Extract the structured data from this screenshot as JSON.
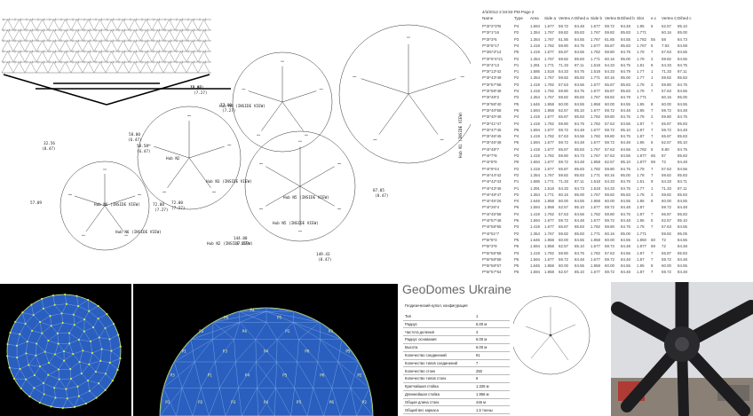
{
  "drawing": {
    "hubs": [
      {
        "id": "n2",
        "label": "Hub N2"
      },
      {
        "id": "n3",
        "label": "Hub N3 (INSIDE VIEW)"
      },
      {
        "id": "n4",
        "label": "Hub N4 (INSIDE VIEW)"
      },
      {
        "id": "n5",
        "label": "Hub N5 (INSIDE VIEW)"
      },
      {
        "id": "n6",
        "label": "Hub N6 (INSIDE VIEW)"
      },
      {
        "id": "n1",
        "label": "Hub N1 (INSIDE VIEW)"
      }
    ],
    "bottom_labels": [
      "Hub N6 (INSIDE VIEW)",
      "Hub N5 (INSIDE VIEW)",
      "Hub N2 (INSIDE VIEW)"
    ],
    "angle_labels": [
      "72.00",
      "(7.27)",
      "58.00",
      "(6.47)",
      "58.50",
      "(6.47)",
      "32.56",
      "(8.47)",
      "77.09",
      "(7.27)",
      "72.00",
      "(7.27)",
      "144.00",
      "(7.27)",
      "149.43",
      "(8.47)",
      "87.05",
      "(8.47)",
      "72.00",
      "(7.27)",
      "57.09",
      "(8.47)"
    ]
  },
  "table": {
    "meta": "4/3/2012  2:34:53 PM    Page 2",
    "columns": [
      "Name",
      "Type",
      "Area",
      "Side a",
      "Vertex A",
      "Dihed a",
      "Side b",
      "Vertex B",
      "Dihed b",
      "Slot",
      "e.c",
      "Vertex C",
      "Dihed c"
    ],
    "rows": [
      [
        "P*3I*2*3*B",
        "P4",
        "1.594",
        "1.677",
        "59.72",
        "84.48",
        "1.677",
        "59.72",
        "84.48",
        "1.95",
        "5",
        "62.57",
        "85.10"
      ],
      [
        "P*3I*1*16",
        "P2",
        "1.354",
        "1.767",
        "59.82",
        "85.83",
        "1.767",
        "59.82",
        "85.83",
        "1.771",
        "",
        "60.16",
        "85.00"
      ],
      [
        "P*3I*3*6",
        "P3",
        "1.354",
        "1.767",
        "61.85",
        "84.55",
        "1.767",
        "61.85",
        "84.55",
        "1.782",
        "55",
        "58",
        "84.73"
      ],
      [
        "P*3I*6*17",
        "P4",
        "1.419",
        "1.782",
        "59.80",
        "84.75",
        "1.677",
        "65.87",
        "85.83",
        "1.767",
        "5",
        "7.93",
        "84.59"
      ],
      [
        "P*3I5*3*14",
        "P5",
        "1.419",
        "1.677",
        "65.87",
        "84.55",
        "1.782",
        "59.80",
        "84.75",
        "1.78",
        "7",
        "57.63",
        "84.56"
      ],
      [
        "P*3I*5*4*21",
        "P2",
        "1.354",
        "1.767",
        "59.82",
        "85.83",
        "1.771",
        "60.16",
        "85.00",
        "1.78",
        "2",
        "59.82",
        "84.55"
      ],
      [
        "P*3I*4*13",
        "P1",
        "1.391",
        "1.771",
        "71.33",
        "87.11",
        "1.518",
        "54.33",
        "84.75",
        "1.81",
        "8",
        "54.33",
        "84.75"
      ],
      [
        "P*3I*13*42",
        "P1",
        "1.585",
        "1.518",
        "54.33",
        "84.75",
        "1.518",
        "54.33",
        "84.79",
        "1.77",
        "1",
        "71.33",
        "87.11"
      ],
      [
        "P*3I*43*49",
        "P2",
        "1.354",
        "1.767",
        "59.82",
        "85.83",
        "1.771",
        "60.16",
        "85.00",
        "1.77",
        "1",
        "59.82",
        "85.83"
      ],
      [
        "P*3I*57*58",
        "P3",
        "1.419",
        "1.782",
        "57.63",
        "84.56",
        "1.677",
        "65.87",
        "85.83",
        "1.78",
        "2",
        "59.80",
        "84.75"
      ],
      [
        "P*3I*58*48",
        "P4",
        "1.419",
        "1.782",
        "59.80",
        "84.75",
        "1.677",
        "65.87",
        "85.83",
        "1.78",
        "7",
        "57.63",
        "84.56"
      ],
      [
        "P*3I*48*2",
        "P2",
        "1.354",
        "1.767",
        "59.82",
        "85.83",
        "1.767",
        "59.82",
        "84.79",
        "1.771",
        "",
        "60.16",
        "85.00"
      ],
      [
        "P*3I*58*40",
        "P5",
        "1.646",
        "1.958",
        "60.00",
        "84.55",
        "1.958",
        "60.00",
        "84.55",
        "1.95",
        "8",
        "60.00",
        "84.55"
      ],
      [
        "P*3I*40*58",
        "P6",
        "1.594",
        "1.958",
        "62.57",
        "85.10",
        "1.677",
        "59.72",
        "84.48",
        "1.95",
        "7",
        "59.72",
        "84.48"
      ],
      [
        "P*3I*40*49",
        "P4",
        "1.419",
        "1.677",
        "65.87",
        "85.83",
        "1.782",
        "59.80",
        "84.75",
        "1.78",
        "2",
        "59.80",
        "84.75"
      ],
      [
        "P*3I*41*47",
        "P4",
        "1.419",
        "1.782",
        "59.80",
        "84.75",
        "1.782",
        "57.63",
        "84.56",
        "1.87",
        "7",
        "65.87",
        "85.83"
      ],
      [
        "P*3I*47*46",
        "P6",
        "1.594",
        "1.677",
        "59.72",
        "84.48",
        "1.677",
        "59.72",
        "85.10",
        "1.87",
        "7",
        "59.72",
        "84.48"
      ],
      [
        "P*3I*46*45",
        "P4",
        "1.419",
        "1.782",
        "57.63",
        "84.56",
        "1.782",
        "59.80",
        "84.75",
        "1.87",
        "7",
        "65.87",
        "85.83"
      ],
      [
        "P*3I*45*48",
        "P6",
        "1.594",
        "1.677",
        "59.72",
        "84.48",
        "1.677",
        "59.72",
        "84.48",
        "1.95",
        "5",
        "62.57",
        "85.10"
      ],
      [
        "P*4I*48*7",
        "P4",
        "1.419",
        "1.677",
        "65.87",
        "85.83",
        "1.767",
        "57.63",
        "84.56",
        "1.782",
        "5",
        "8.80",
        "84.75"
      ],
      [
        "P*4I*7*8",
        "P3",
        "1.419",
        "1.782",
        "59.80",
        "84.73",
        "1.767",
        "57.63",
        "84.56",
        "1.877",
        "65",
        "87",
        "85.83"
      ],
      [
        "P*4I*8*9",
        "P6",
        "1.594",
        "1.677",
        "59.72",
        "84.48",
        "1.958",
        "62.57",
        "85.10",
        "1.877",
        "59",
        "72",
        "84.48"
      ],
      [
        "P*4I*9*44",
        "P2",
        "1.419",
        "1.677",
        "65.87",
        "85.83",
        "1.782",
        "59.80",
        "84.75",
        "1.78",
        "7",
        "57.63",
        "84.56"
      ],
      [
        "P*4I*44*42",
        "P2",
        "1.354",
        "1.767",
        "59.82",
        "85.83",
        "1.771",
        "60.16",
        "85.00",
        "1.78",
        "7",
        "59.82",
        "85.83"
      ],
      [
        "P*4I*42*43",
        "P1",
        "1.585",
        "1.771",
        "71.33",
        "87.11",
        "1.518",
        "54.33",
        "84.75",
        "1.51",
        "9",
        "54.33",
        "84.71"
      ],
      [
        "P*4I*43*45",
        "P1",
        "1.391",
        "1.518",
        "54.33",
        "84.73",
        "1.518",
        "54.33",
        "84.75",
        "1.77",
        "1",
        "71.33",
        "87.11"
      ],
      [
        "P*4I*49*47",
        "P2",
        "1.354",
        "1.771",
        "60.16",
        "85.00",
        "1.767",
        "59.82",
        "85.83",
        "1.78",
        "2",
        "59.82",
        "85.83"
      ],
      [
        "P*4I*45*26",
        "P4",
        "1.646",
        "1.958",
        "60.00",
        "84.55",
        "1.958",
        "60.00",
        "84.55",
        "1.95",
        "8",
        "60.00",
        "84.55"
      ],
      [
        "P*4I*26*4",
        "P6",
        "1.594",
        "1.958",
        "62.57",
        "85.10",
        "1.677",
        "59.72",
        "84.48",
        "1.87",
        "",
        "59.72",
        "84.48"
      ],
      [
        "P*4I*45*58",
        "P4",
        "1.419",
        "1.782",
        "57.63",
        "84.56",
        "1.782",
        "59.80",
        "84.75",
        "1.87",
        "7",
        "65.87",
        "85.83"
      ],
      [
        "P*4I*57*48",
        "P6",
        "1.594",
        "1.677",
        "59.72",
        "84.48",
        "1.677",
        "59.72",
        "84.48",
        "1.95",
        "5",
        "62.57",
        "85.10"
      ],
      [
        "P*4I*58*55",
        "P3",
        "1.419",
        "1.677",
        "65.87",
        "85.83",
        "1.782",
        "59.80",
        "84.75",
        "1.78",
        "7",
        "57.63",
        "84.56"
      ],
      [
        "P*4I*51*7",
        "P2",
        "1.354",
        "1.767",
        "59.82",
        "85.83",
        "1.771",
        "60.16",
        "85.00",
        "1.771",
        "",
        "59.82",
        "85.05"
      ],
      [
        "P*5I*8*3",
        "P5",
        "1.646",
        "1.958",
        "60.00",
        "84.55",
        "1.958",
        "60.00",
        "84.55",
        "1.950",
        "60",
        "72",
        "84.55"
      ],
      [
        "P*5I*3*9",
        "P6",
        "1.594",
        "1.958",
        "62.57",
        "85.10",
        "1.677",
        "59.72",
        "84.48",
        "1.877",
        "59",
        "72",
        "84.48"
      ],
      [
        "P*5I*55*58",
        "P3",
        "1.419",
        "1.782",
        "59.80",
        "84.75",
        "1.782",
        "57.63",
        "84.56",
        "1.87",
        "7",
        "65.87",
        "85.83"
      ],
      [
        "P*5I*58*58",
        "P6",
        "1.594",
        "1.677",
        "59.72",
        "84.48",
        "1.677",
        "59.72",
        "84.48",
        "1.87",
        "7",
        "59.72",
        "84.48"
      ],
      [
        "P*5I*58*57",
        "P5",
        "1.646",
        "1.958",
        "60.00",
        "84.55",
        "1.958",
        "60.00",
        "84.55",
        "1.95",
        "8",
        "60.00",
        "84.55"
      ],
      [
        "P*5I*57*54",
        "P6",
        "1.594",
        "1.958",
        "62.57",
        "85.10",
        "1.677",
        "59.72",
        "84.48",
        "1.87",
        "7",
        "59.72",
        "84.48"
      ]
    ]
  },
  "dome_side": {
    "panel_labels": [
      "P1",
      "P2",
      "P3",
      "P4",
      "P5",
      "P6",
      "P2",
      "P3",
      "P1",
      "P4",
      "P5",
      "P6",
      "P2",
      "P1",
      "P3",
      "P4",
      "P6",
      "P5",
      "P2",
      "P4",
      "P1",
      "P3",
      "P6",
      "P5",
      "P4",
      "P2",
      "P1",
      "P3",
      "P5",
      "P6",
      "P4",
      "P2"
    ]
  },
  "config": {
    "brand": "GeoDomes Ukraine",
    "title": "Геодезический купол, конфигурация",
    "rows": [
      {
        "k": "Тип",
        "v": "1"
      },
      {
        "k": "Радиус",
        "v": "6.00 м"
      },
      {
        "k": "Частота деления",
        "v": "4"
      },
      {
        "k": "Радиус основания",
        "v": "6.00 м"
      },
      {
        "k": "Высота",
        "v": "6.00 м"
      },
      {
        "k": "Количество соединений",
        "v": "91"
      },
      {
        "k": "Количество типов соединений",
        "v": "7"
      },
      {
        "k": "Количество стоек",
        "v": "250"
      },
      {
        "k": "Количество типов стоек",
        "v": "6"
      },
      {
        "k": "Кратчайшая стойка",
        "v": "1.326 м"
      },
      {
        "k": "Длиннейшая стойка",
        "v": "1.956 м"
      },
      {
        "k": "Общая длина стоек",
        "v": "446 м"
      },
      {
        "k": "Общий вес каркаса",
        "v": "1.5 тонны"
      }
    ]
  },
  "colors": {
    "dome_blue": "#2a5fbf",
    "dome_edge": "#c8e05a",
    "line": "#333333",
    "bg_black": "#000000"
  }
}
